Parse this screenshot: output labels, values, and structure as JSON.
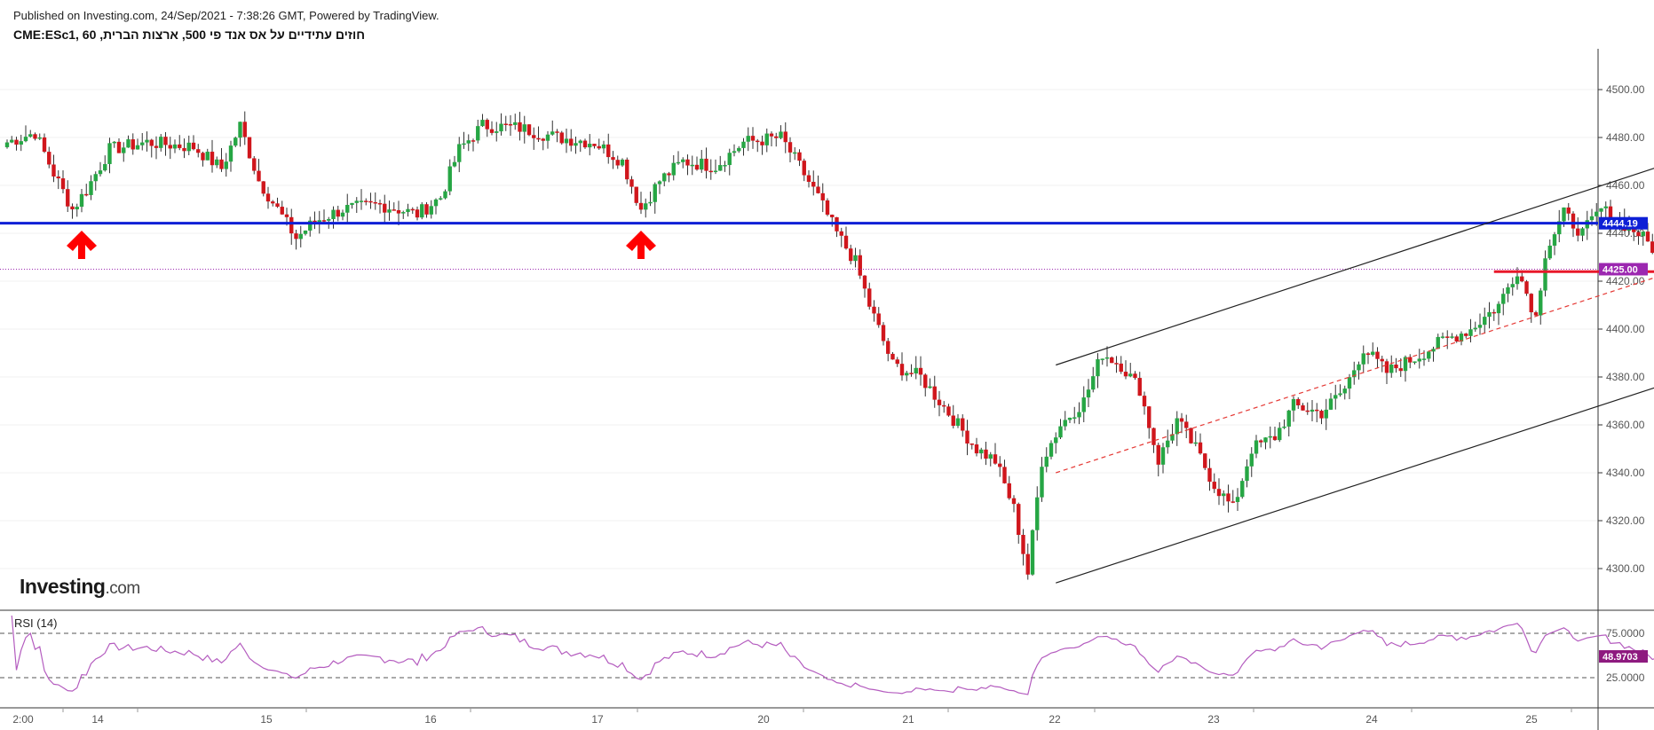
{
  "header": {
    "published": "Published on Investing.com, 24/Sep/2021 - 7:38:26 GMT, Powered by TradingView.",
    "symbol": "חוזים עתידיים על אס אנד פי 500, ארצות הברית, CME:ESc1, 60"
  },
  "logo": {
    "main": "Investing",
    "suffix": ".com"
  },
  "rsi": {
    "label": "RSI (14)",
    "current": "48.9703",
    "upper": "75.0000",
    "lower": "25.0000"
  },
  "colors": {
    "up": "#26a644",
    "down": "#d0161c",
    "support": "#0d1fd6",
    "resist_current": "#9c27b0",
    "rsi": "#b45cbf"
  },
  "price_axis": {
    "ticks": [
      "4500.00",
      "4480.00",
      "4460.00",
      "4440.00",
      "4420.00",
      "4400.00",
      "4380.00",
      "4360.00",
      "4340.00",
      "4320.00",
      "4300.00"
    ],
    "tag_support": "4444.19",
    "tag_last": "4425.00"
  },
  "time_axis": {
    "labels": [
      "2:00",
      "14",
      "15",
      "16",
      "17",
      "20",
      "21",
      "22",
      "23",
      "24",
      "25"
    ]
  },
  "chart_data": {
    "type": "candlestick",
    "ylim": [
      4290,
      4505
    ],
    "support_level": 4444.19,
    "last_price": 4425.0,
    "rsi_levels": [
      25,
      75
    ],
    "rsi_current": 48.9703,
    "waypoints": [
      [
        0,
        4478
      ],
      [
        6,
        4482
      ],
      [
        10,
        4465
      ],
      [
        14,
        4450
      ],
      [
        17,
        4458
      ],
      [
        22,
        4475
      ],
      [
        30,
        4478
      ],
      [
        40,
        4476
      ],
      [
        46,
        4467
      ],
      [
        50,
        4485
      ],
      [
        54,
        4462
      ],
      [
        58,
        4450
      ],
      [
        62,
        4438
      ],
      [
        66,
        4445
      ],
      [
        72,
        4450
      ],
      [
        80,
        4452
      ],
      [
        88,
        4448
      ],
      [
        93,
        4455
      ],
      [
        97,
        4475
      ],
      [
        102,
        4485
      ],
      [
        110,
        4484
      ],
      [
        118,
        4480
      ],
      [
        126,
        4478
      ],
      [
        132,
        4470
      ],
      [
        136,
        4450
      ],
      [
        140,
        4462
      ],
      [
        145,
        4470
      ],
      [
        152,
        4468
      ],
      [
        158,
        4478
      ],
      [
        166,
        4480
      ],
      [
        170,
        4468
      ],
      [
        174,
        4455
      ],
      [
        178,
        4440
      ],
      [
        182,
        4428
      ],
      [
        185,
        4410
      ],
      [
        190,
        4385
      ],
      [
        196,
        4380
      ],
      [
        200,
        4370
      ],
      [
        204,
        4360
      ],
      [
        208,
        4350
      ],
      [
        212,
        4345
      ],
      [
        216,
        4325
      ],
      [
        219,
        4298
      ],
      [
        222,
        4345
      ],
      [
        226,
        4360
      ],
      [
        231,
        4370
      ],
      [
        235,
        4390
      ],
      [
        239,
        4385
      ],
      [
        243,
        4375
      ],
      [
        247,
        4345
      ],
      [
        251,
        4362
      ],
      [
        255,
        4350
      ],
      [
        259,
        4335
      ],
      [
        263,
        4325
      ],
      [
        267,
        4350
      ],
      [
        272,
        4355
      ],
      [
        276,
        4368
      ],
      [
        282,
        4365
      ],
      [
        287,
        4375
      ],
      [
        291,
        4392
      ],
      [
        296,
        4382
      ],
      [
        302,
        4388
      ],
      [
        308,
        4395
      ],
      [
        314,
        4400
      ],
      [
        320,
        4410
      ],
      [
        324,
        4425
      ],
      [
        328,
        4405
      ],
      [
        330,
        4432
      ],
      [
        334,
        4448
      ],
      [
        338,
        4440
      ],
      [
        342,
        4450
      ],
      [
        346,
        4445
      ],
      [
        350,
        4440
      ],
      [
        354,
        4432
      ],
      [
        356,
        4425
      ]
    ],
    "channel": {
      "upper": [
        [
          225,
          4385
        ],
        [
          400,
          4497
        ]
      ],
      "lower": [
        [
          225,
          4294
        ],
        [
          400,
          4405
        ]
      ],
      "mid": [
        [
          225,
          4340
        ],
        [
          400,
          4451
        ]
      ]
    },
    "red_level": {
      "price": 4424,
      "from": 319,
      "to": 366
    },
    "arrows": [
      16,
      136
    ]
  }
}
